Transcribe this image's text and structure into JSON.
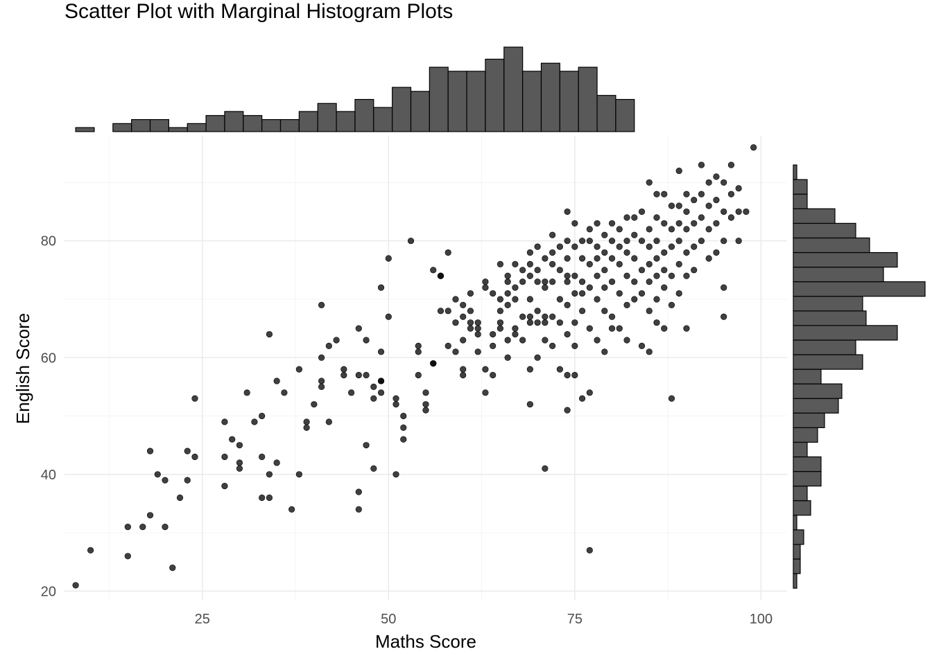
{
  "chart_data": {
    "type": "scatter",
    "title": "Scatter Plot with Marginal Histogram Plots",
    "xlabel": "Maths Score",
    "ylabel": "English Score",
    "xlim": [
      6.5,
      103.5
    ],
    "ylim": [
      18.5,
      98
    ],
    "x_ticks": [
      25,
      50,
      75,
      100
    ],
    "y_ticks": [
      20,
      40,
      60,
      80
    ],
    "grid": true,
    "legend": "none",
    "points": [
      [
        8,
        21
      ],
      [
        10,
        27
      ],
      [
        15,
        31
      ],
      [
        15,
        26
      ],
      [
        17,
        31
      ],
      [
        18,
        44
      ],
      [
        18,
        33
      ],
      [
        19,
        40
      ],
      [
        20,
        39
      ],
      [
        20,
        31
      ],
      [
        21,
        24
      ],
      [
        22,
        36
      ],
      [
        23,
        44
      ],
      [
        23,
        39
      ],
      [
        24,
        43
      ],
      [
        24,
        53
      ],
      [
        28,
        49
      ],
      [
        28,
        43
      ],
      [
        28,
        38
      ],
      [
        29,
        46
      ],
      [
        30,
        45
      ],
      [
        30,
        42
      ],
      [
        30,
        41
      ],
      [
        31,
        54
      ],
      [
        32,
        49
      ],
      [
        33,
        50
      ],
      [
        33,
        43
      ],
      [
        33,
        36
      ],
      [
        34,
        36
      ],
      [
        34,
        40
      ],
      [
        34,
        64
      ],
      [
        35,
        56
      ],
      [
        35,
        42
      ],
      [
        36,
        54
      ],
      [
        37,
        34
      ],
      [
        38,
        58
      ],
      [
        38,
        40
      ],
      [
        39,
        49
      ],
      [
        39,
        48
      ],
      [
        40,
        52
      ],
      [
        41,
        69
      ],
      [
        41,
        60
      ],
      [
        41,
        56
      ],
      [
        41,
        55
      ],
      [
        42,
        49
      ],
      [
        42,
        62
      ],
      [
        43,
        63
      ],
      [
        44,
        58
      ],
      [
        44,
        57
      ],
      [
        45,
        54
      ],
      [
        46,
        65
      ],
      [
        46,
        57
      ],
      [
        46,
        37
      ],
      [
        46,
        34
      ],
      [
        47,
        63
      ],
      [
        47,
        57
      ],
      [
        47,
        45
      ],
      [
        48,
        55
      ],
      [
        48,
        53
      ],
      [
        48,
        41
      ],
      [
        49,
        61
      ],
      [
        49,
        56
      ],
      [
        49,
        56
      ],
      [
        49,
        54
      ],
      [
        49,
        72
      ],
      [
        50,
        67
      ],
      [
        50,
        77
      ],
      [
        51,
        53
      ],
      [
        51,
        52
      ],
      [
        51,
        40
      ],
      [
        52,
        50
      ],
      [
        52,
        48
      ],
      [
        52,
        46
      ],
      [
        53,
        80
      ],
      [
        54,
        61
      ],
      [
        54,
        57
      ],
      [
        54,
        62
      ],
      [
        55,
        54
      ],
      [
        55,
        52
      ],
      [
        55,
        51
      ],
      [
        56,
        59
      ],
      [
        56,
        75
      ],
      [
        57,
        74
      ],
      [
        57,
        74
      ],
      [
        57,
        68
      ],
      [
        58,
        78
      ],
      [
        58,
        68
      ],
      [
        59,
        66
      ],
      [
        59,
        61
      ],
      [
        59,
        70
      ],
      [
        60,
        69
      ],
      [
        60,
        67
      ],
      [
        60,
        57
      ],
      [
        60,
        58
      ],
      [
        60,
        63
      ],
      [
        61,
        71
      ],
      [
        61,
        68
      ],
      [
        61,
        66
      ],
      [
        61,
        65
      ],
      [
        62,
        65
      ],
      [
        62,
        66
      ],
      [
        62,
        61
      ],
      [
        62,
        64
      ],
      [
        63,
        73
      ],
      [
        63,
        72
      ],
      [
        63,
        54
      ],
      [
        64,
        71
      ],
      [
        64,
        64
      ],
      [
        64,
        62
      ],
      [
        64,
        57
      ],
      [
        65,
        76
      ],
      [
        65,
        70
      ],
      [
        65,
        68
      ],
      [
        65,
        66
      ],
      [
        65,
        65
      ],
      [
        66,
        74
      ],
      [
        66,
        73
      ],
      [
        66,
        71
      ],
      [
        66,
        69
      ],
      [
        66,
        63
      ],
      [
        66,
        60
      ],
      [
        67,
        76
      ],
      [
        67,
        72
      ],
      [
        67,
        70
      ],
      [
        67,
        65
      ],
      [
        67,
        64
      ],
      [
        68,
        75
      ],
      [
        68,
        73
      ],
      [
        68,
        67
      ],
      [
        68,
        63
      ],
      [
        69,
        78
      ],
      [
        69,
        76
      ],
      [
        69,
        74
      ],
      [
        69,
        70
      ],
      [
        69,
        67
      ],
      [
        69,
        66
      ],
      [
        69,
        58
      ],
      [
        69,
        52
      ],
      [
        70,
        79
      ],
      [
        70,
        75
      ],
      [
        70,
        73
      ],
      [
        70,
        68
      ],
      [
        70,
        66
      ],
      [
        70,
        60
      ],
      [
        71,
        77
      ],
      [
        71,
        73
      ],
      [
        71,
        72
      ],
      [
        71,
        67
      ],
      [
        71,
        66
      ],
      [
        71,
        63
      ],
      [
        71,
        41
      ],
      [
        72,
        81
      ],
      [
        72,
        78
      ],
      [
        72,
        76
      ],
      [
        72,
        73
      ],
      [
        72,
        67
      ],
      [
        72,
        62
      ],
      [
        73,
        79
      ],
      [
        73,
        75
      ],
      [
        73,
        70
      ],
      [
        73,
        66
      ],
      [
        73,
        58
      ],
      [
        74,
        85
      ],
      [
        74,
        80
      ],
      [
        74,
        77
      ],
      [
        74,
        74
      ],
      [
        74,
        73
      ],
      [
        74,
        69
      ],
      [
        74,
        64
      ],
      [
        74,
        57
      ],
      [
        74,
        51
      ],
      [
        75,
        83
      ],
      [
        75,
        79
      ],
      [
        75,
        74
      ],
      [
        75,
        71
      ],
      [
        75,
        66
      ],
      [
        75,
        62
      ],
      [
        75,
        57
      ],
      [
        76,
        80
      ],
      [
        76,
        77
      ],
      [
        76,
        73
      ],
      [
        76,
        71
      ],
      [
        76,
        68
      ],
      [
        76,
        53
      ],
      [
        77,
        82
      ],
      [
        77,
        80
      ],
      [
        77,
        76
      ],
      [
        77,
        72
      ],
      [
        77,
        65
      ],
      [
        77,
        54
      ],
      [
        77,
        27
      ],
      [
        78,
        83
      ],
      [
        78,
        79
      ],
      [
        78,
        77
      ],
      [
        78,
        74
      ],
      [
        78,
        70
      ],
      [
        78,
        63
      ],
      [
        79,
        81
      ],
      [
        79,
        78
      ],
      [
        79,
        75
      ],
      [
        79,
        72
      ],
      [
        79,
        68
      ],
      [
        79,
        61
      ],
      [
        80,
        83
      ],
      [
        80,
        80
      ],
      [
        80,
        77
      ],
      [
        80,
        73
      ],
      [
        80,
        67
      ],
      [
        80,
        65
      ],
      [
        81,
        82
      ],
      [
        81,
        79
      ],
      [
        81,
        76
      ],
      [
        81,
        71
      ],
      [
        81,
        65
      ],
      [
        82,
        84
      ],
      [
        82,
        80
      ],
      [
        82,
        78
      ],
      [
        82,
        74
      ],
      [
        82,
        69
      ],
      [
        82,
        63
      ],
      [
        83,
        84
      ],
      [
        83,
        81
      ],
      [
        83,
        77
      ],
      [
        83,
        73
      ],
      [
        83,
        70
      ],
      [
        84,
        85
      ],
      [
        84,
        80
      ],
      [
        84,
        75
      ],
      [
        84,
        71
      ],
      [
        84,
        62
      ],
      [
        85,
        90
      ],
      [
        85,
        82
      ],
      [
        85,
        79
      ],
      [
        85,
        76
      ],
      [
        85,
        73
      ],
      [
        85,
        68
      ],
      [
        85,
        61
      ],
      [
        86,
        88
      ],
      [
        86,
        84
      ],
      [
        86,
        80
      ],
      [
        86,
        77
      ],
      [
        86,
        74
      ],
      [
        86,
        70
      ],
      [
        87,
        88
      ],
      [
        87,
        83
      ],
      [
        87,
        78
      ],
      [
        87,
        75
      ],
      [
        87,
        72
      ],
      [
        87,
        65
      ],
      [
        88,
        86
      ],
      [
        88,
        82
      ],
      [
        88,
        79
      ],
      [
        88,
        74
      ],
      [
        88,
        69
      ],
      [
        88,
        53
      ],
      [
        89,
        92
      ],
      [
        89,
        86
      ],
      [
        89,
        83
      ],
      [
        89,
        80
      ],
      [
        89,
        76
      ],
      [
        89,
        71
      ],
      [
        90,
        88
      ],
      [
        90,
        85
      ],
      [
        90,
        82
      ],
      [
        90,
        78
      ],
      [
        90,
        74
      ],
      [
        91,
        87
      ],
      [
        91,
        83
      ],
      [
        91,
        79
      ],
      [
        91,
        75
      ],
      [
        92,
        93
      ],
      [
        92,
        88
      ],
      [
        92,
        84
      ],
      [
        92,
        80
      ],
      [
        93,
        90
      ],
      [
        93,
        86
      ],
      [
        93,
        82
      ],
      [
        93,
        77
      ],
      [
        94,
        91
      ],
      [
        94,
        87
      ],
      [
        94,
        83
      ],
      [
        94,
        78
      ],
      [
        95,
        90
      ],
      [
        95,
        85
      ],
      [
        95,
        80
      ],
      [
        95,
        72
      ],
      [
        96,
        93
      ],
      [
        96,
        88
      ],
      [
        96,
        84
      ],
      [
        97,
        89
      ],
      [
        97,
        85
      ],
      [
        97,
        80
      ],
      [
        98,
        85
      ],
      [
        99,
        96
      ],
      [
        95,
        67
      ],
      [
        90,
        65
      ],
      [
        86,
        66
      ],
      [
        63,
        58
      ],
      [
        58,
        62
      ],
      [
        56,
        59
      ]
    ],
    "x_histogram": {
      "bins": [
        {
          "start": 8.0,
          "end": 10.5,
          "count": 1
        },
        {
          "start": 10.5,
          "end": 13.0,
          "count": 0
        },
        {
          "start": 13.0,
          "end": 15.5,
          "count": 2
        },
        {
          "start": 15.5,
          "end": 18.0,
          "count": 3
        },
        {
          "start": 18.0,
          "end": 20.5,
          "count": 3
        },
        {
          "start": 20.5,
          "end": 23.0,
          "count": 1
        },
        {
          "start": 23.0,
          "end": 25.5,
          "count": 2
        },
        {
          "start": 25.5,
          "end": 28.0,
          "count": 4
        },
        {
          "start": 28.0,
          "end": 30.5,
          "count": 5
        },
        {
          "start": 30.5,
          "end": 33.0,
          "count": 4
        },
        {
          "start": 33.0,
          "end": 35.5,
          "count": 3
        },
        {
          "start": 35.5,
          "end": 38.0,
          "count": 3
        },
        {
          "start": 38.0,
          "end": 40.5,
          "count": 5
        },
        {
          "start": 40.5,
          "end": 43.0,
          "count": 7
        },
        {
          "start": 43.0,
          "end": 45.5,
          "count": 5
        },
        {
          "start": 45.5,
          "end": 48.0,
          "count": 8
        },
        {
          "start": 48.0,
          "end": 50.5,
          "count": 6
        },
        {
          "start": 50.5,
          "end": 53.0,
          "count": 11
        },
        {
          "start": 53.0,
          "end": 55.5,
          "count": 10
        },
        {
          "start": 55.5,
          "end": 58.0,
          "count": 16
        },
        {
          "start": 58.0,
          "end": 60.5,
          "count": 15
        },
        {
          "start": 60.5,
          "end": 63.0,
          "count": 15
        },
        {
          "start": 63.0,
          "end": 65.5,
          "count": 18
        },
        {
          "start": 65.5,
          "end": 68.0,
          "count": 21
        },
        {
          "start": 68.0,
          "end": 70.5,
          "count": 15
        },
        {
          "start": 70.5,
          "end": 73.0,
          "count": 17
        },
        {
          "start": 73.0,
          "end": 75.5,
          "count": 15
        },
        {
          "start": 75.5,
          "end": 78.0,
          "count": 16
        },
        {
          "start": 78.0,
          "end": 80.5,
          "count": 9
        },
        {
          "start": 80.5,
          "end": 83.0,
          "count": 8
        }
      ]
    },
    "y_histogram": {
      "bins": [
        {
          "start": 20.5,
          "end": 23.0,
          "count": 1
        },
        {
          "start": 23.0,
          "end": 25.5,
          "count": 2
        },
        {
          "start": 25.5,
          "end": 28.0,
          "count": 2
        },
        {
          "start": 28.0,
          "end": 30.5,
          "count": 3
        },
        {
          "start": 30.5,
          "end": 33.0,
          "count": 1
        },
        {
          "start": 33.0,
          "end": 35.5,
          "count": 5
        },
        {
          "start": 35.5,
          "end": 38.0,
          "count": 4
        },
        {
          "start": 38.0,
          "end": 40.5,
          "count": 8
        },
        {
          "start": 40.5,
          "end": 43.0,
          "count": 8
        },
        {
          "start": 43.0,
          "end": 45.5,
          "count": 4
        },
        {
          "start": 45.5,
          "end": 48.0,
          "count": 7
        },
        {
          "start": 48.0,
          "end": 50.5,
          "count": 9
        },
        {
          "start": 50.5,
          "end": 53.0,
          "count": 13
        },
        {
          "start": 53.0,
          "end": 55.5,
          "count": 14
        },
        {
          "start": 55.5,
          "end": 58.0,
          "count": 8
        },
        {
          "start": 58.0,
          "end": 60.5,
          "count": 20
        },
        {
          "start": 60.5,
          "end": 63.0,
          "count": 18
        },
        {
          "start": 63.0,
          "end": 65.5,
          "count": 30
        },
        {
          "start": 65.5,
          "end": 68.0,
          "count": 21
        },
        {
          "start": 68.0,
          "end": 70.5,
          "count": 20
        },
        {
          "start": 70.5,
          "end": 73.0,
          "count": 38
        },
        {
          "start": 73.0,
          "end": 75.5,
          "count": 26
        },
        {
          "start": 75.5,
          "end": 78.0,
          "count": 30
        },
        {
          "start": 78.0,
          "end": 80.5,
          "count": 22
        },
        {
          "start": 80.5,
          "end": 83.0,
          "count": 18
        },
        {
          "start": 83.0,
          "end": 85.5,
          "count": 12
        },
        {
          "start": 85.5,
          "end": 88.0,
          "count": 4
        },
        {
          "start": 88.0,
          "end": 90.5,
          "count": 4
        },
        {
          "start": 90.5,
          "end": 93.0,
          "count": 1
        }
      ]
    }
  }
}
